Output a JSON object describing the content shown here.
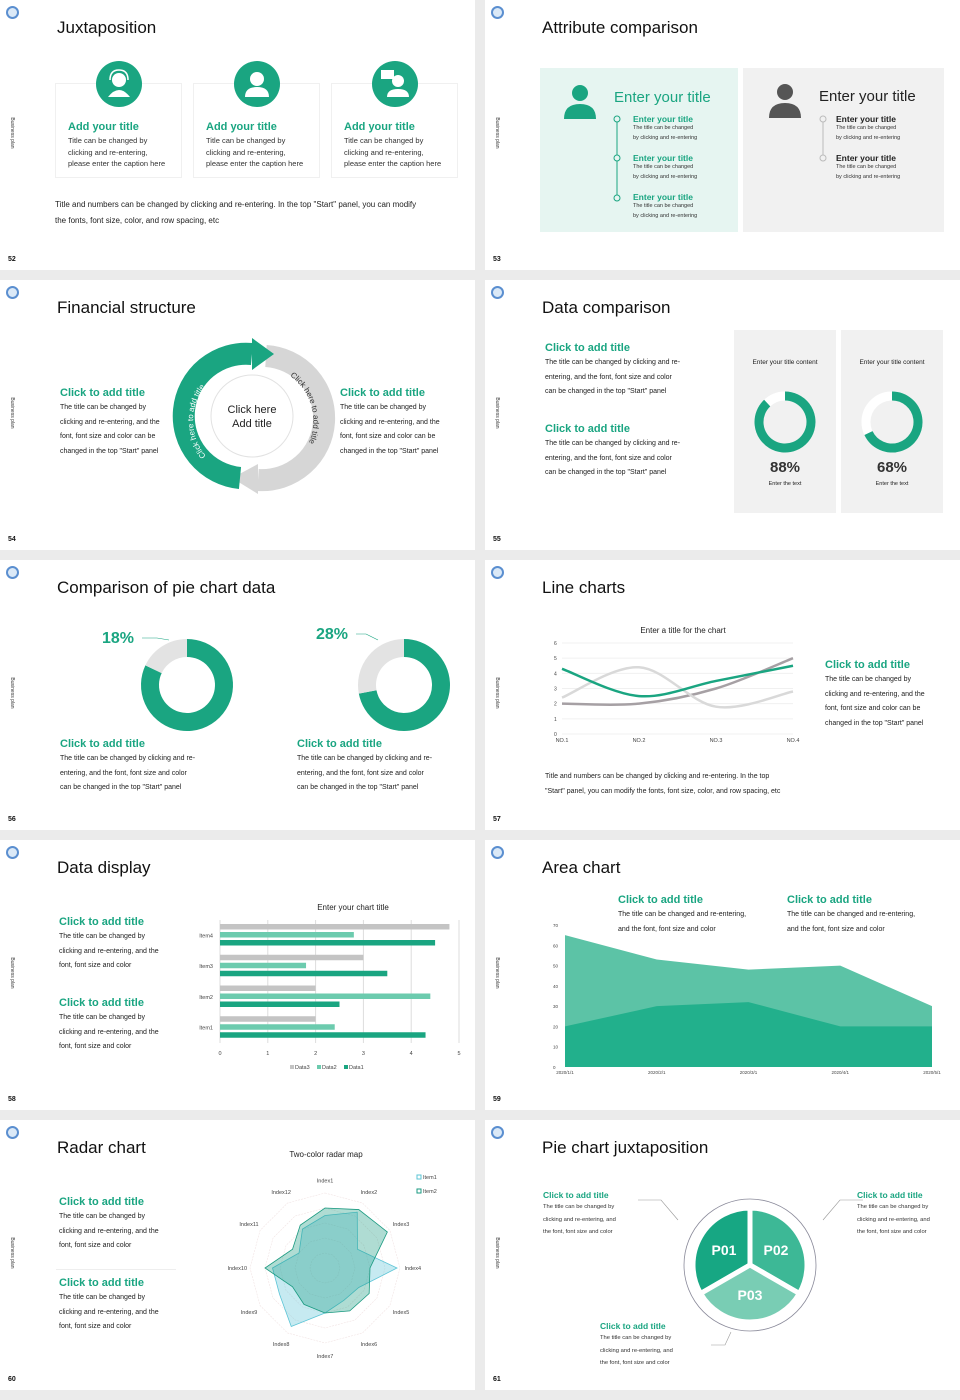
{
  "side_label": "Business plan",
  "colors": {
    "accent": "#1aa581",
    "accent_light": "#5cc3a6",
    "gray": "#c9c9c9",
    "panel_green": "#e6f5f1",
    "panel_gray": "#f1f1f1"
  },
  "s52": {
    "number": "52",
    "title": "Juxtaposition",
    "cards": [
      {
        "icon": "customer-service-icon",
        "title": "Add your title",
        "lines": [
          "Title can be changed by",
          "clicking and re-entering,",
          "please enter the caption here"
        ]
      },
      {
        "icon": "user-icon",
        "title": "Add your title",
        "lines": [
          "Title can be changed by",
          "clicking and re-entering,",
          "please enter the caption here"
        ]
      },
      {
        "icon": "consultant-icon",
        "title": "Add your title",
        "lines": [
          "Title can be changed by",
          "clicking and re-entering,",
          "please enter the caption here"
        ]
      }
    ],
    "footer": [
      "Title and numbers can be changed by clicking and re-entering. In the top \"Start\" panel, you can modify",
      "the fonts, font size, color, and row spacing, etc"
    ]
  },
  "s53": {
    "number": "53",
    "title": "Attribute comparison",
    "panels": [
      {
        "heading": "Enter your title",
        "items": [
          {
            "title": "Enter your title",
            "lines": [
              "The title can be changed",
              "by clicking and re-entering"
            ]
          },
          {
            "title": "Enter your title",
            "lines": [
              "The title can be changed",
              "by clicking and re-entering"
            ]
          },
          {
            "title": "Enter your title",
            "lines": [
              "The title can be changed",
              "by clicking and re-entering"
            ]
          }
        ]
      },
      {
        "heading": "Enter your title",
        "items": [
          {
            "title": "Enter your title",
            "lines": [
              "The title can be changed",
              "by clicking and re-entering"
            ]
          },
          {
            "title": "Enter your title",
            "lines": [
              "The title can be changed",
              "by clicking and re-entering"
            ]
          }
        ]
      }
    ]
  },
  "s54": {
    "number": "54",
    "title": "Financial structure",
    "left": {
      "title": "Click to add title",
      "lines": [
        "The title can be changed by",
        "clicking and re-entering, and the",
        "font, font size and color can be",
        "changed in the top \"Start\" panel"
      ]
    },
    "right": {
      "title": "Click to add title",
      "lines": [
        "The title can be changed by",
        "clicking and re-entering, and the",
        "font, font size and color can be",
        "changed in the top \"Start\" panel"
      ]
    },
    "center": [
      "Click here",
      "Add title"
    ],
    "arrow_green": "Click here to add title",
    "arrow_gray": "Click here to add title"
  },
  "s55": {
    "number": "55",
    "title": "Data comparison",
    "blocks": [
      {
        "title": "Click to add title",
        "lines": [
          "The title can be changed by clicking and re-",
          "entering, and the font, font size and color",
          "can be changed in the top \"Start\" panel"
        ]
      },
      {
        "title": "Click to add title",
        "lines": [
          "The title can be changed by clicking and re-",
          "entering, and the font, font size and color",
          "can be changed in the top \"Start\" panel"
        ]
      }
    ],
    "cards": [
      {
        "heading": "Enter your title content",
        "percent": 88,
        "label": "88%",
        "caption": "Enter the text"
      },
      {
        "heading": "Enter your title content",
        "percent": 68,
        "label": "68%",
        "caption": "Enter the text"
      }
    ]
  },
  "s56": {
    "number": "56",
    "title": "Comparison of pie chart data",
    "pies": [
      {
        "percent": 18,
        "label": "18%",
        "title": "Click to add title",
        "lines": [
          "The title can be changed by clicking and re-",
          "entering, and the font, font size and color",
          "can be changed in the top \"Start\" panel"
        ]
      },
      {
        "percent": 28,
        "label": "28%",
        "title": "Click to add title",
        "lines": [
          "The title can be changed by clicking and re-",
          "entering, and the font, font size and color",
          "can be changed in the top \"Start\" panel"
        ]
      }
    ]
  },
  "s57": {
    "number": "57",
    "title": "Line charts",
    "side": {
      "title": "Click to add title",
      "lines": [
        "The title can be changed by",
        "clicking and re-entering, and the",
        "font, font size and color can be",
        "changed in the top \"Start\" panel"
      ]
    },
    "footer": [
      "Title and numbers can be changed by clicking and re-entering. In the top",
      "\"Start\" panel, you can modify the fonts, font size, color, and row spacing, etc"
    ]
  },
  "s58": {
    "number": "58",
    "title": "Data display",
    "blocks": [
      {
        "title": "Click to add title",
        "lines": [
          "The title can be changed by",
          "clicking and re-entering, and the",
          "font, font size and color"
        ]
      },
      {
        "title": "Click to add title",
        "lines": [
          "The title can be changed by",
          "clicking and re-entering, and the",
          "font, font size and color"
        ]
      }
    ]
  },
  "s59": {
    "number": "59",
    "title": "Area chart",
    "blocks": [
      {
        "title": "Click to add title",
        "lines": [
          "The title can be changed and re-entering,",
          "and the font, font size and color"
        ]
      },
      {
        "title": "Click to add title",
        "lines": [
          "The title can be changed and re-entering,",
          "and the font, font size and color"
        ]
      }
    ]
  },
  "s60": {
    "number": "60",
    "title": "Radar chart",
    "blocks": [
      {
        "title": "Click to add title",
        "lines": [
          "The title can be changed by",
          "clicking and re-entering, and the",
          "font, font size and color"
        ]
      },
      {
        "title": "Click to add title",
        "lines": [
          "The title can be changed by",
          "clicking and re-entering, and the",
          "font, font size and color"
        ]
      }
    ]
  },
  "s61": {
    "number": "61",
    "title": "Pie chart juxtaposition",
    "segments": [
      "P01",
      "P02",
      "P03"
    ],
    "blocks": [
      {
        "title": "Click to add title",
        "lines": [
          "The title can be changed by",
          "clicking and re-entering, and",
          "the font, font size and color"
        ]
      },
      {
        "title": "Click to add title",
        "lines": [
          "The title can be changed by",
          "clicking and re-entering, and",
          "the font, font size and color"
        ]
      },
      {
        "title": "Click to add title",
        "lines": [
          "The title can be changed by",
          "clicking and re-entering, and",
          "the font, font size and color"
        ]
      }
    ]
  },
  "chart_data": [
    {
      "type": "line",
      "title": "Enter a title for the chart",
      "categories": [
        "NO.1",
        "NO.2",
        "NO.3",
        "NO.4"
      ],
      "ylim": [
        0,
        6
      ],
      "yticks": [
        0,
        1,
        2,
        3,
        4,
        5,
        6
      ],
      "smooth": true,
      "series": [
        {
          "values": [
            4.3,
            2.5,
            3.5,
            4.5
          ],
          "color": "#1aa581"
        },
        {
          "values": [
            2.4,
            4.4,
            1.8,
            2.8
          ],
          "color": "#d9d9d9"
        },
        {
          "values": [
            2.0,
            2.0,
            3.0,
            5.0
          ],
          "color": "#a6a0a4"
        }
      ]
    },
    {
      "type": "bar",
      "orientation": "horizontal",
      "title": "Enter your chart title",
      "categories": [
        "Item1",
        "Item2",
        "Item3",
        "Item4"
      ],
      "xlim": [
        0,
        5
      ],
      "xticks": [
        0,
        1,
        2,
        3,
        4,
        5
      ],
      "legend": "bottom",
      "grid": true,
      "series": [
        {
          "name": "Data1",
          "values": [
            4.3,
            2.5,
            3.5,
            4.5
          ],
          "color": "#1aa581"
        },
        {
          "name": "Data2",
          "values": [
            2.4,
            4.4,
            1.8,
            2.8
          ],
          "color": "#6ccbae"
        },
        {
          "name": "Data3",
          "values": [
            2.0,
            2.0,
            3.0,
            4.8
          ],
          "color": "#c4c4c4"
        }
      ]
    },
    {
      "type": "area",
      "categories": [
        "2020/1/1",
        "2020/2/1",
        "2020/3/1",
        "2020/4/1",
        "2020/5/1"
      ],
      "ylim": [
        0,
        70
      ],
      "yticks": [
        0,
        10,
        20,
        30,
        40,
        50,
        60,
        70
      ],
      "series": [
        {
          "values": [
            65,
            53,
            48,
            50,
            30
          ],
          "color": "#5cc3a6"
        },
        {
          "values": [
            20,
            30,
            32,
            20,
            20
          ],
          "color": "#22b08c"
        }
      ]
    },
    {
      "type": "radar",
      "title": "Two-color radar map",
      "axes": [
        "Index1",
        "Index2",
        "Index3",
        "Index4",
        "Index5",
        "Index6",
        "Index7",
        "Index8",
        "Index9",
        "Index10",
        "Index11",
        "Index12"
      ],
      "rmax": 5,
      "legend": "top-right",
      "series": [
        {
          "name": "Item1",
          "values": [
            3.5,
            4.3,
            2.5,
            4.8,
            2.6,
            2.5,
            3.0,
            4.5,
            3.5,
            3.5,
            2.0,
            3.0
          ],
          "color": "#5bc4d6"
        },
        {
          "name": "Item2",
          "values": [
            4.0,
            4.5,
            4.8,
            3.0,
            3.4,
            3.3,
            3.0,
            2.8,
            2.5,
            4.0,
            2.5,
            3.3
          ],
          "color": "#1a9a80"
        }
      ]
    }
  ]
}
